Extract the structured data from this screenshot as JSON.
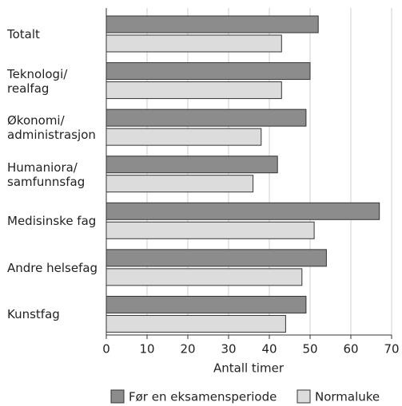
{
  "chart_data": {
    "type": "bar",
    "orientation": "horizontal",
    "x_label": "Antall timer",
    "categories": [
      "Totalt",
      "Teknologi/\nrealfag",
      "Økonomi/\nadministrasjon",
      "Humaniora/\nsamfunnsfag",
      "Medisinske fag",
      "Andre helsefag",
      "Kunstfag"
    ],
    "series": [
      {
        "name": "Før en eksamensperiode",
        "color": "#8c8c8c",
        "values": [
          52,
          50,
          49,
          42,
          67,
          54,
          49
        ]
      },
      {
        "name": "Normaluke",
        "color": "#dcdcdc",
        "values": [
          43,
          43,
          38,
          36,
          51,
          48,
          44
        ]
      }
    ],
    "xlim": [
      0,
      70
    ],
    "xticks": [
      0,
      10,
      20,
      30,
      40,
      50,
      60,
      70
    ],
    "grid": true,
    "legend": "bottom"
  }
}
